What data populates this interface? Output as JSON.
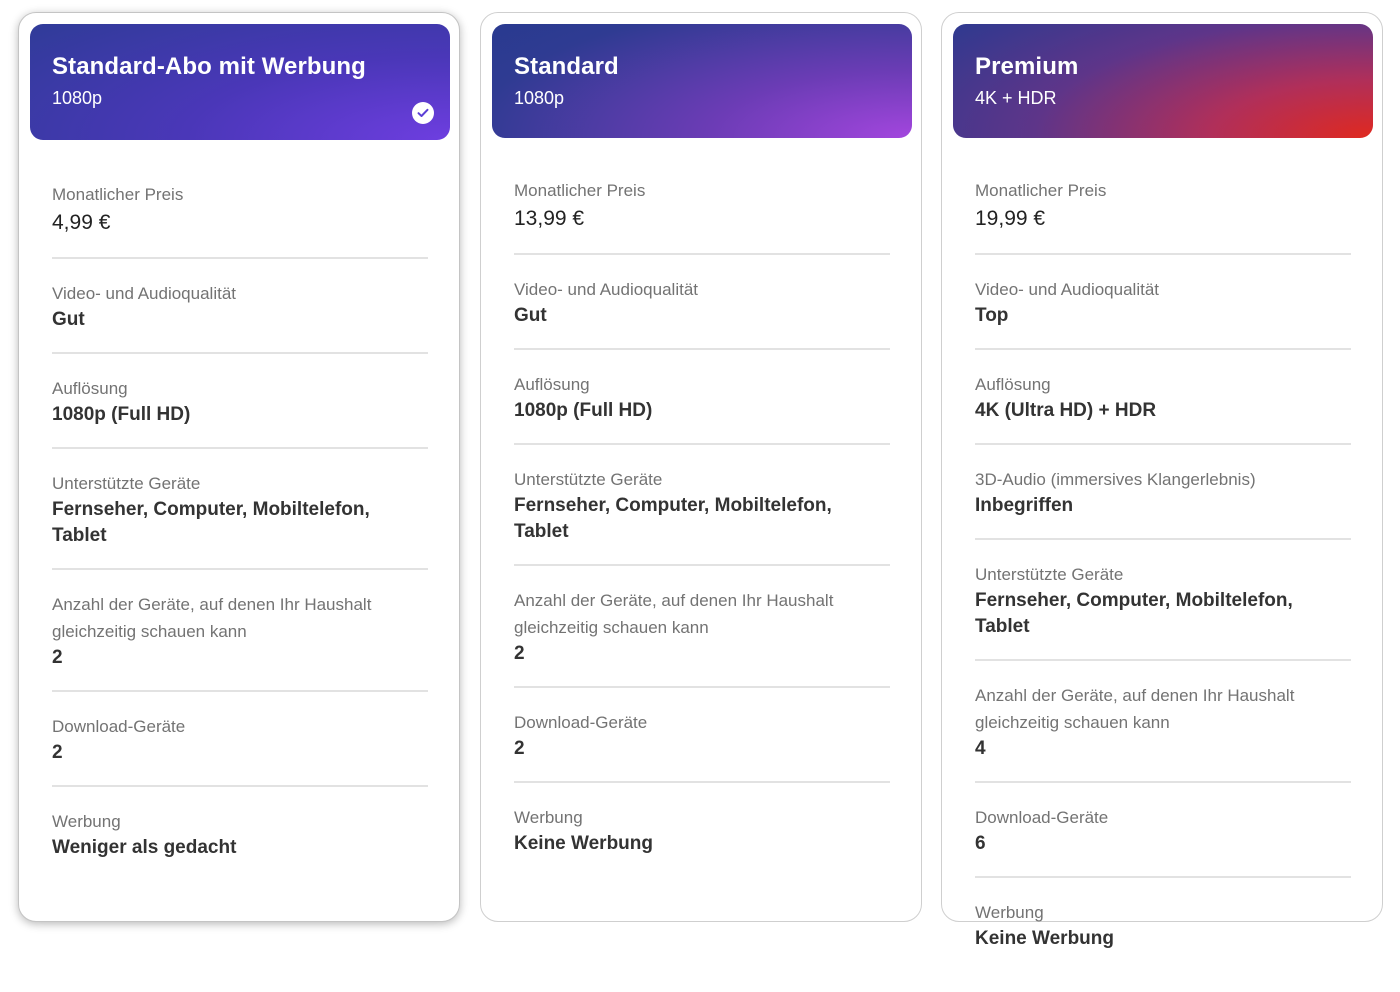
{
  "plans": [
    {
      "name": "Standard-Abo mit Werbung",
      "resolution_badge": "1080p",
      "selected": true,
      "check_icon": "checkmark-circle-icon",
      "header_colors": [
        "#2d3c95",
        "#6e3ee0"
      ],
      "features": [
        {
          "label": "Monatlicher Preis",
          "value": "4,99 €"
        },
        {
          "label": "Video- und Audioqualität",
          "value": "Gut"
        },
        {
          "label": "Auflösung",
          "value": "1080p (Full HD)"
        },
        {
          "label": "Unterstützte Geräte",
          "value": "Fernseher, Computer, Mobiltelefon, Tablet"
        },
        {
          "label": "Anzahl der Geräte, auf denen Ihr Haushalt gleichzeitig schauen kann",
          "value": "2"
        },
        {
          "label": "Download-Geräte",
          "value": "2"
        },
        {
          "label": "Werbung",
          "value": "Weniger als gedacht"
        }
      ]
    },
    {
      "name": "Standard",
      "resolution_badge": "1080p",
      "selected": false,
      "header_colors": [
        "#263a8e",
        "#a346de"
      ],
      "features": [
        {
          "label": "Monatlicher Preis",
          "value": "13,99 €"
        },
        {
          "label": "Video- und Audioqualität",
          "value": "Gut"
        },
        {
          "label": "Auflösung",
          "value": "1080p (Full HD)"
        },
        {
          "label": "Unterstützte Geräte",
          "value": "Fernseher, Computer, Mobiltelefon, Tablet"
        },
        {
          "label": "Anzahl der Geräte, auf denen Ihr Haushalt gleichzeitig schauen kann",
          "value": "2"
        },
        {
          "label": "Download-Geräte",
          "value": "2"
        },
        {
          "label": "Werbung",
          "value": "Keine Werbung"
        }
      ]
    },
    {
      "name": "Premium",
      "resolution_badge": "4K + HDR",
      "selected": false,
      "header_colors": [
        "#2a3a90",
        "#e0291f"
      ],
      "features": [
        {
          "label": "Monatlicher Preis",
          "value": "19,99 €"
        },
        {
          "label": "Video- und Audioqualität",
          "value": "Top"
        },
        {
          "label": "Auflösung",
          "value": "4K (Ultra HD) + HDR"
        },
        {
          "label": "3D-Audio (immersives Klangerlebnis)",
          "value": "Inbegriffen"
        },
        {
          "label": "Unterstützte Geräte",
          "value": "Fernseher, Computer, Mobiltelefon, Tablet"
        },
        {
          "label": "Anzahl der Geräte, auf denen Ihr Haushalt gleichzeitig schauen kann",
          "value": "4"
        },
        {
          "label": "Download-Geräte",
          "value": "6"
        },
        {
          "label": "Werbung",
          "value": "Keine Werbung"
        }
      ]
    }
  ]
}
